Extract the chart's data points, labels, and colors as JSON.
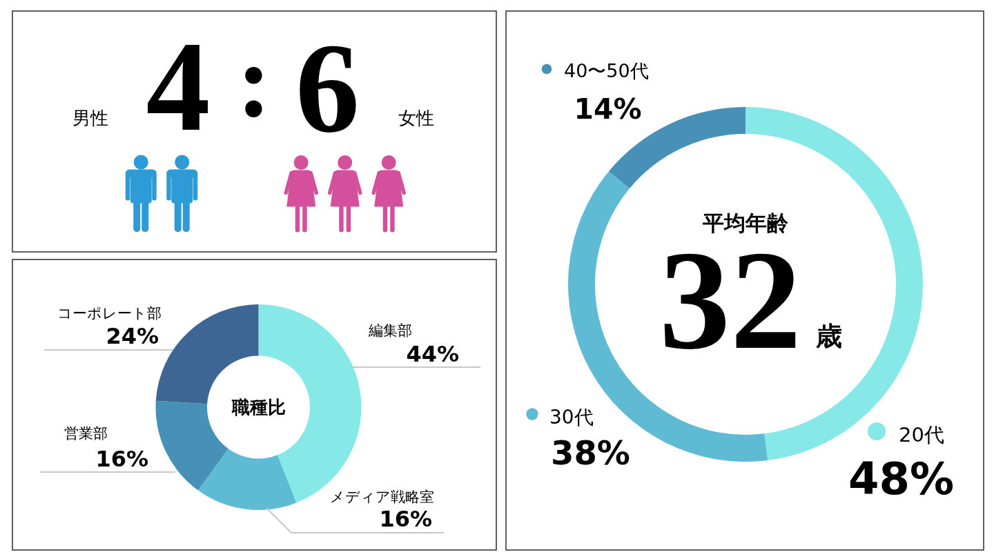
{
  "chart_data": [
    {
      "type": "other",
      "categories": [
        "男性",
        "女性"
      ],
      "values": [
        4,
        6
      ],
      "colors": [
        "#2e9bd6",
        "#d4509c"
      ],
      "data_labels": true,
      "annotations": [
        ":"
      ]
    },
    {
      "type": "donut",
      "title": "職種比",
      "categories": [
        "編集部",
        "メディア戦略室",
        "営業部",
        "コーポレート部"
      ],
      "values": [
        44,
        16,
        16,
        24
      ],
      "value_labels": [
        "44%",
        "16%",
        "16%",
        "24%"
      ],
      "colors": [
        "#87e8e8",
        "#5ebbd3",
        "#4790b8",
        "#3d6694"
      ]
    },
    {
      "type": "donut",
      "title": "平均年齢",
      "annotations": [
        "32",
        "歳"
      ],
      "categories": [
        "20代",
        "30代",
        "40〜50代"
      ],
      "values": [
        48,
        38,
        14
      ],
      "value_labels": [
        "48%",
        "38%",
        "14%"
      ],
      "colors": [
        "#87e8e8",
        "#5ebbd3",
        "#4790b8"
      ],
      "legend": "left"
    }
  ]
}
